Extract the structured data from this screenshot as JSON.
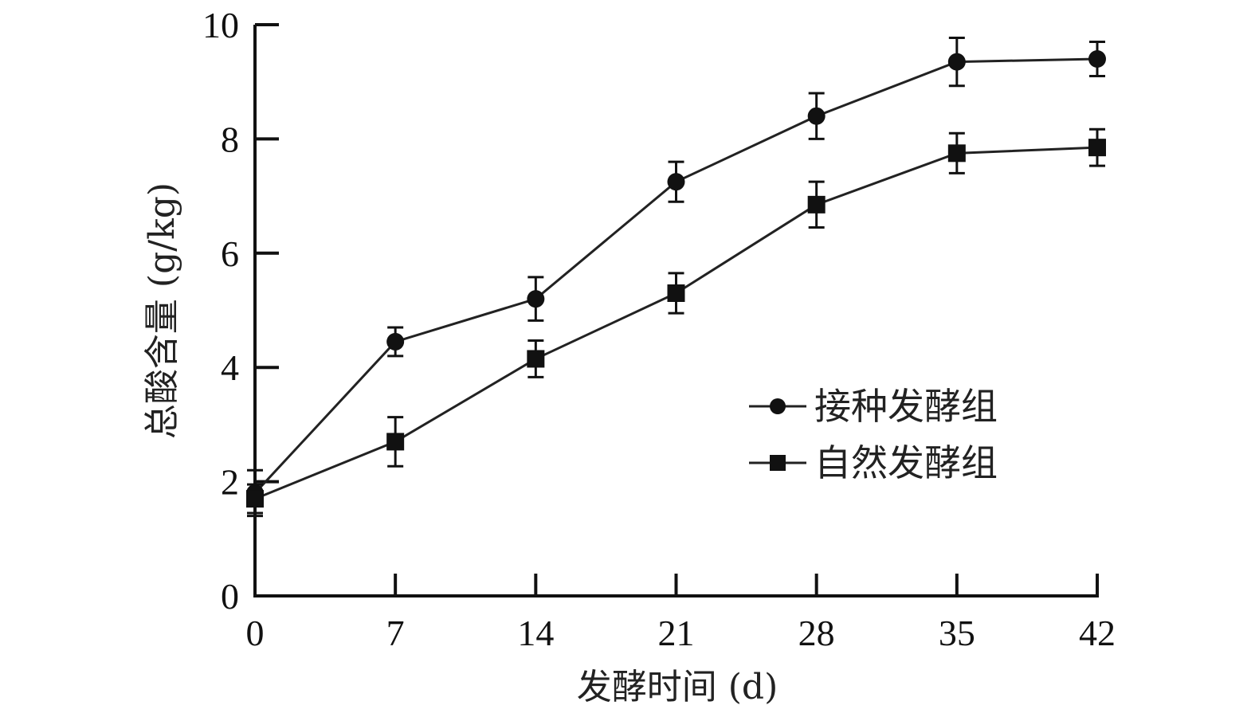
{
  "chart_data": {
    "type": "line",
    "xlabel": "发酵时间 (d)",
    "ylabel": "总酸含量 (g/kg)",
    "x": [
      0,
      7,
      14,
      21,
      28,
      35,
      42
    ],
    "x_ticks": [
      "0",
      "7",
      "14",
      "21",
      "28",
      "35",
      "42"
    ],
    "y_ticks": [
      "0",
      "2",
      "4",
      "6",
      "8",
      "10"
    ],
    "xlim": [
      0,
      42
    ],
    "ylim": [
      0,
      10
    ],
    "grid": false,
    "legend_position": "right-middle",
    "series": [
      {
        "name": "接种发酵组",
        "marker": "circle",
        "values": [
          1.8,
          4.45,
          5.2,
          7.25,
          8.4,
          9.35,
          9.4
        ],
        "errors": [
          0.4,
          0.25,
          0.38,
          0.35,
          0.4,
          0.42,
          0.3
        ]
      },
      {
        "name": "自然发酵组",
        "marker": "square",
        "values": [
          1.7,
          2.7,
          4.15,
          5.3,
          6.85,
          7.75,
          7.85
        ],
        "errors": [
          0.25,
          0.43,
          0.32,
          0.35,
          0.4,
          0.35,
          0.32
        ]
      }
    ],
    "colors": {
      "axis": "#111111",
      "line": "#222222",
      "marker": "#111111"
    }
  }
}
